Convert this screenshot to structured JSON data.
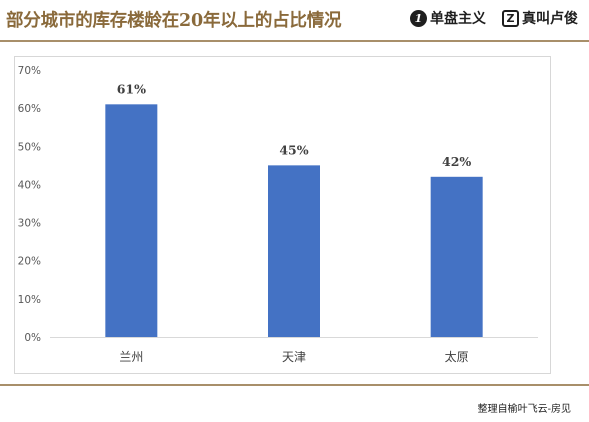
{
  "header": {
    "title": "部分城市的库存楼龄在20年以上的占比情况",
    "brand1": {
      "icon": "one-circle-logo-icon",
      "logo_glyph": "1",
      "name": "单盘主义"
    },
    "brand2": {
      "icon": "z-square-logo-icon",
      "logo_glyph": "Z",
      "name": "真叫卢俊"
    },
    "accent_color": "#a88f6a",
    "title_color": "#8a6a3b"
  },
  "chart_data": {
    "type": "bar",
    "title": "",
    "xlabel": "",
    "ylabel": "",
    "categories": [
      "兰州",
      "天津",
      "太原"
    ],
    "values": [
      61,
      45,
      42
    ],
    "data_labels": [
      "61%",
      "45%",
      "42%"
    ],
    "ylim": [
      0,
      70
    ],
    "yticks": [
      "0%",
      "10%",
      "20%",
      "30%",
      "40%",
      "50%",
      "60%",
      "70%"
    ],
    "bar_color": "#4472c4",
    "grid": false
  },
  "footer": {
    "credit": "整理自榆叶飞云-房见"
  }
}
